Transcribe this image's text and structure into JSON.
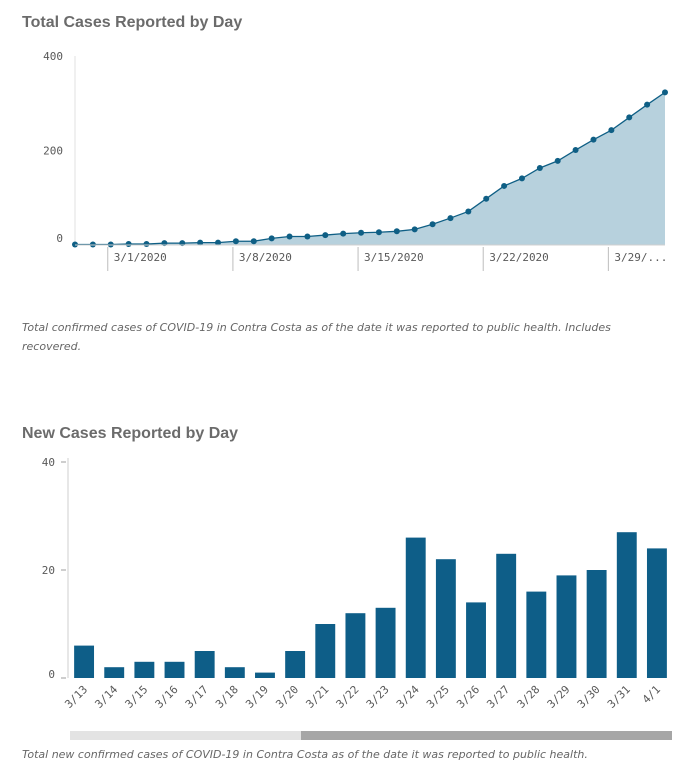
{
  "charts": [
    {
      "title": "Total Cases Reported by Day",
      "caption": "Total confirmed cases of COVID-19 in Contra Costa as of the date it was reported to public health. Includes recovered.",
      "colors": {
        "fill": "#b7d1dd",
        "line": "#0f5f85",
        "marker": "#0f5f85"
      }
    },
    {
      "title": "New Cases Reported by Day",
      "caption": "Total new confirmed cases of COVID-19 in Contra Costa as of the date it was reported to public health.",
      "colors": {
        "bar": "#0e5e88"
      }
    }
  ],
  "chart_data": [
    {
      "type": "area",
      "title": "Total Cases Reported by Day",
      "xlabel": "",
      "ylabel": "",
      "ylim": [
        0,
        400
      ],
      "yticks": [
        "0",
        "200",
        "400"
      ],
      "x_tick_labels": [
        "3/1/2020",
        "3/8/2020",
        "3/15/2020",
        "3/22/2020",
        "3/29/..."
      ],
      "x": [
        "2/28/2020",
        "2/29/2020",
        "3/1/2020",
        "3/2/2020",
        "3/3/2020",
        "3/4/2020",
        "3/5/2020",
        "3/6/2020",
        "3/7/2020",
        "3/8/2020",
        "3/9/2020",
        "3/10/2020",
        "3/11/2020",
        "3/12/2020",
        "3/13/2020",
        "3/14/2020",
        "3/15/2020",
        "3/16/2020",
        "3/17/2020",
        "3/18/2020",
        "3/19/2020",
        "3/20/2020",
        "3/21/2020",
        "3/22/2020",
        "3/23/2020",
        "3/24/2020",
        "3/25/2020",
        "3/26/2020",
        "3/27/2020",
        "3/28/2020",
        "3/29/2020",
        "3/30/2020",
        "3/31/2020",
        "4/1/2020"
      ],
      "values": [
        1,
        1,
        1,
        2,
        2,
        4,
        4,
        5,
        5,
        8,
        8,
        14,
        18,
        18,
        21,
        24,
        26,
        27,
        29,
        33,
        44,
        57,
        71,
        98,
        125,
        141,
        163,
        178,
        201,
        223,
        243,
        270,
        297,
        323
      ],
      "grid": false
    },
    {
      "type": "bar",
      "title": "New Cases Reported by Day",
      "xlabel": "",
      "ylabel": "",
      "ylim": [
        0,
        40
      ],
      "yticks": [
        "0",
        "20",
        "40"
      ],
      "categories": [
        "3/13",
        "3/14",
        "3/15",
        "3/16",
        "3/17",
        "3/18",
        "3/19",
        "3/20",
        "3/21",
        "3/22",
        "3/23",
        "3/24",
        "3/25",
        "3/26",
        "3/27",
        "3/28",
        "3/29",
        "3/30",
        "3/31",
        "4/1"
      ],
      "values": [
        6,
        2,
        3,
        3,
        5,
        2,
        1,
        5,
        10,
        12,
        13,
        26,
        22,
        14,
        23,
        16,
        19,
        20,
        27,
        24
      ],
      "grid": false
    }
  ]
}
